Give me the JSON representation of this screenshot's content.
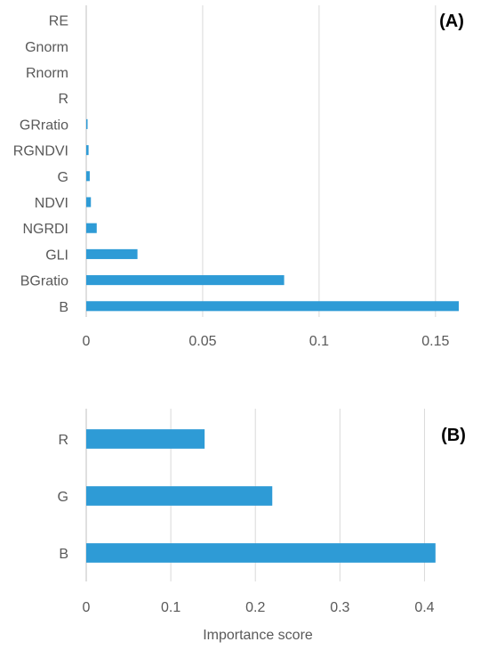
{
  "chart_data": [
    {
      "type": "bar",
      "orientation": "horizontal",
      "panel_label": "(A)",
      "categories": [
        "RE",
        "Gnorm",
        "Rnorm",
        "R",
        "GRratio",
        "RGNDVI",
        "G",
        "NDVI",
        "NGRDI",
        "GLI",
        "BGratio",
        "B"
      ],
      "values": [
        0,
        0,
        0,
        0,
        0.0005,
        0.001,
        0.0015,
        0.002,
        0.0045,
        0.022,
        0.085,
        0.16
      ],
      "xlim": [
        0,
        0.16
      ],
      "xticks": [
        "0",
        "0.05",
        "0.1",
        "0.15"
      ],
      "xtick_values": [
        0,
        0.05,
        0.1,
        0.15
      ],
      "xlabel": "",
      "grid": "vertical",
      "bar_color": "#2E9BD6"
    },
    {
      "type": "bar",
      "orientation": "horizontal",
      "panel_label": "(B)",
      "categories": [
        "R",
        "G",
        "B"
      ],
      "values": [
        0.14,
        0.22,
        0.413
      ],
      "xlim": [
        0,
        0.45
      ],
      "xticks": [
        "0",
        "0.1",
        "0.2",
        "0.3",
        "0.4"
      ],
      "xtick_values": [
        0,
        0.1,
        0.2,
        0.3,
        0.4
      ],
      "xlabel": "Importance score",
      "grid": "vertical",
      "bar_color": "#2E9BD6"
    }
  ]
}
